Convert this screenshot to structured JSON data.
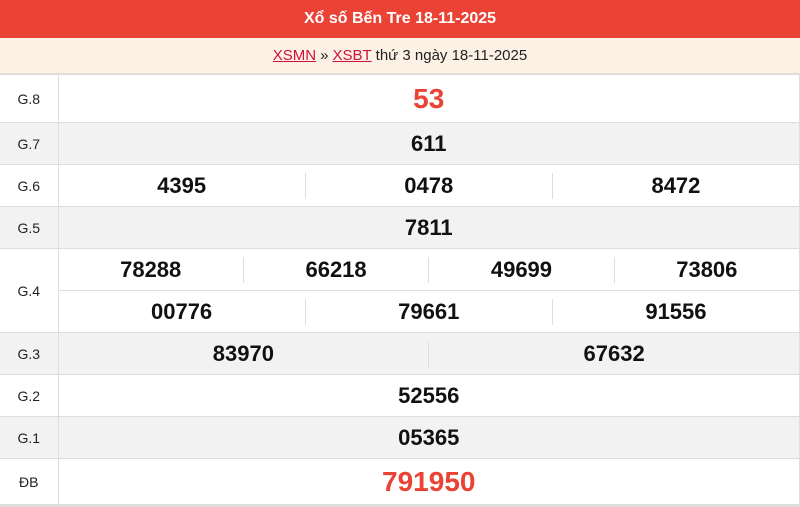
{
  "header": {
    "title": "Xổ số Bến Tre 18-11-2025"
  },
  "breadcrumb": {
    "link1": "XSMN",
    "separator": "»",
    "link2": "XSBT",
    "text": "thứ 3 ngày 18-11-2025"
  },
  "colors": {
    "header_bg": "#ea4335",
    "accent_red": "#ea4335",
    "link": "#d0103a",
    "subheader_bg": "#fdf1e6"
  },
  "prizes": {
    "g8": {
      "label": "G.8",
      "numbers": [
        "53"
      ]
    },
    "g7": {
      "label": "G.7",
      "numbers": [
        "611"
      ]
    },
    "g6": {
      "label": "G.6",
      "numbers": [
        "4395",
        "0478",
        "8472"
      ]
    },
    "g5": {
      "label": "G.5",
      "numbers": [
        "7811"
      ]
    },
    "g4": {
      "label": "G.4",
      "numbers": [
        "78288",
        "66218",
        "49699",
        "73806",
        "00776",
        "79661",
        "91556"
      ]
    },
    "g3": {
      "label": "G.3",
      "numbers": [
        "83970",
        "67632"
      ]
    },
    "g2": {
      "label": "G.2",
      "numbers": [
        "52556"
      ]
    },
    "g1": {
      "label": "G.1",
      "numbers": [
        "05365"
      ]
    },
    "db": {
      "label": "ĐB",
      "numbers": [
        "791950"
      ]
    }
  }
}
